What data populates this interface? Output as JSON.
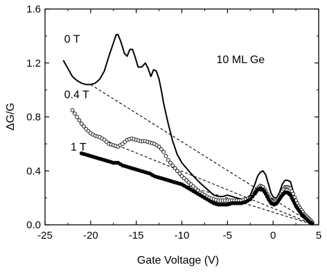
{
  "chart_data": {
    "type": "line",
    "title": "",
    "xlabel": "Gate Voltage (V)",
    "ylabel": "ΔG/G",
    "xlim": [
      -25,
      5
    ],
    "ylim": [
      0.0,
      1.6
    ],
    "x_ticks": [
      -25,
      -20,
      -15,
      -10,
      -5,
      0,
      5
    ],
    "y_ticks": [
      0.0,
      0.4,
      0.8,
      1.2,
      1.6
    ],
    "x_tick_labels": [
      "-25",
      "-20",
      "-15",
      "-10",
      "-5",
      "0",
      "5"
    ],
    "y_tick_labels": [
      "0.0",
      "0.4",
      "0.8",
      "1.2",
      "1.6"
    ],
    "grid": false,
    "annotation": "10 ML Ge",
    "series": [
      {
        "name": "0 T",
        "style": "solid-line",
        "x": [
          -23,
          -22.5,
          -22,
          -21.5,
          -21,
          -20.5,
          -20,
          -19.5,
          -19,
          -18.5,
          -18,
          -17.5,
          -17.2,
          -17,
          -16.7,
          -16.3,
          -16,
          -15.7,
          -15.4,
          -15.1,
          -14.8,
          -14.4,
          -14,
          -13.7,
          -13.4,
          -13.1,
          -12.8,
          -12.5,
          -12.2,
          -12,
          -11.5,
          -11,
          -10.5,
          -10,
          -9,
          -8,
          -7,
          -6.5,
          -6,
          -5.5,
          -5,
          -4.5,
          -4,
          -3.5,
          -3,
          -2.5,
          -2,
          -1.7,
          -1.4,
          -1.1,
          -0.8,
          -0.5,
          -0.2,
          0.1,
          0.4,
          0.7,
          1.0,
          1.3,
          1.6,
          1.9,
          2.2,
          2.5,
          2.8,
          3.1,
          3.4,
          3.7,
          4.0,
          4.3
        ],
        "y": [
          1.22,
          1.16,
          1.1,
          1.07,
          1.05,
          1.04,
          1.04,
          1.05,
          1.08,
          1.14,
          1.25,
          1.35,
          1.41,
          1.41,
          1.36,
          1.27,
          1.25,
          1.3,
          1.3,
          1.24,
          1.17,
          1.17,
          1.2,
          1.16,
          1.1,
          1.15,
          1.14,
          1.08,
          0.98,
          0.9,
          0.75,
          0.62,
          0.52,
          0.46,
          0.38,
          0.31,
          0.25,
          0.22,
          0.21,
          0.21,
          0.22,
          0.21,
          0.2,
          0.19,
          0.19,
          0.22,
          0.3,
          0.36,
          0.39,
          0.4,
          0.37,
          0.3,
          0.23,
          0.2,
          0.2,
          0.24,
          0.3,
          0.33,
          0.33,
          0.32,
          0.25,
          0.16,
          0.14,
          0.11,
          0.09,
          0.06,
          0.04,
          0.02
        ]
      },
      {
        "name": "0.4 T",
        "style": "open-circles",
        "x": [
          -22,
          -21.5,
          -21,
          -20.5,
          -20,
          -19.5,
          -19,
          -18.5,
          -18,
          -17.5,
          -17,
          -16.5,
          -16,
          -15.5,
          -15,
          -14.5,
          -14,
          -13.5,
          -13,
          -12.5,
          -12,
          -11.5,
          -11,
          -10.5,
          -10,
          -9.5,
          -9,
          -8.5,
          -8,
          -7.5,
          -7,
          -6.5,
          -6,
          -5.5,
          -5,
          -4.5,
          -4,
          -3.5,
          -3,
          -2.5,
          -2,
          -1.7,
          -1.4,
          -1.1,
          -0.8,
          -0.5,
          -0.2,
          0.1,
          0.4,
          0.7,
          1.0,
          1.3,
          1.6,
          1.9,
          2.2,
          2.5,
          2.8,
          3.1,
          3.4,
          3.7,
          4.0,
          4.3
        ],
        "y": [
          0.85,
          0.8,
          0.75,
          0.71,
          0.68,
          0.66,
          0.65,
          0.63,
          0.6,
          0.59,
          0.58,
          0.6,
          0.63,
          0.64,
          0.63,
          0.62,
          0.62,
          0.61,
          0.6,
          0.58,
          0.54,
          0.48,
          0.44,
          0.4,
          0.36,
          0.33,
          0.3,
          0.27,
          0.24,
          0.22,
          0.2,
          0.19,
          0.18,
          0.18,
          0.18,
          0.18,
          0.18,
          0.18,
          0.19,
          0.2,
          0.24,
          0.27,
          0.29,
          0.28,
          0.25,
          0.21,
          0.18,
          0.17,
          0.18,
          0.21,
          0.25,
          0.28,
          0.28,
          0.27,
          0.23,
          0.18,
          0.14,
          0.11,
          0.08,
          0.06,
          0.04,
          0.02
        ]
      },
      {
        "name": "1 T",
        "style": "filled-circles",
        "x": [
          -21,
          -20.5,
          -20,
          -19.5,
          -19,
          -18.5,
          -18,
          -17.5,
          -17,
          -16.5,
          -16,
          -15.5,
          -15,
          -14.5,
          -14,
          -13.5,
          -13,
          -12.5,
          -12,
          -11.5,
          -11,
          -10.5,
          -10,
          -9.5,
          -9,
          -8.5,
          -8,
          -7.5,
          -7,
          -6.5,
          -6,
          -5.5,
          -5,
          -4.5,
          -4,
          -3.5,
          -3,
          -2.5,
          -2,
          -1.7,
          -1.4,
          -1.1,
          -0.8,
          -0.5,
          -0.2,
          0.1,
          0.4,
          0.7,
          1.0,
          1.3,
          1.6,
          1.9,
          2.2,
          2.5,
          2.8,
          3.1,
          3.4,
          3.7,
          4.0,
          4.3
        ],
        "y": [
          0.53,
          0.52,
          0.51,
          0.5,
          0.49,
          0.48,
          0.47,
          0.46,
          0.46,
          0.44,
          0.43,
          0.42,
          0.41,
          0.4,
          0.39,
          0.38,
          0.36,
          0.35,
          0.34,
          0.33,
          0.32,
          0.31,
          0.3,
          0.28,
          0.26,
          0.24,
          0.22,
          0.2,
          0.18,
          0.16,
          0.15,
          0.15,
          0.15,
          0.16,
          0.16,
          0.16,
          0.17,
          0.19,
          0.23,
          0.26,
          0.27,
          0.26,
          0.23,
          0.19,
          0.16,
          0.15,
          0.16,
          0.19,
          0.22,
          0.24,
          0.24,
          0.22,
          0.18,
          0.14,
          0.11,
          0.08,
          0.06,
          0.04,
          0.02,
          0.01
        ]
      }
    ],
    "baselines": [
      {
        "style": "dashed",
        "x": [
          -20,
          4.5
        ],
        "y": [
          1.04,
          0.0
        ]
      },
      {
        "style": "dashed",
        "x": [
          -20,
          4.5
        ],
        "y": [
          0.67,
          0.0
        ]
      },
      {
        "style": "dashed",
        "x": [
          -20,
          4.5
        ],
        "y": [
          0.51,
          0.0
        ]
      }
    ],
    "series_labels": [
      {
        "text": "0 T",
        "x": -22.9,
        "y": 1.35
      },
      {
        "text": "0.4 T",
        "x": -22.9,
        "y": 0.94
      },
      {
        "text": "1 T",
        "x": -22.2,
        "y": 0.55
      }
    ],
    "annotation_pos": {
      "x": -6.2,
      "y": 1.2
    }
  }
}
